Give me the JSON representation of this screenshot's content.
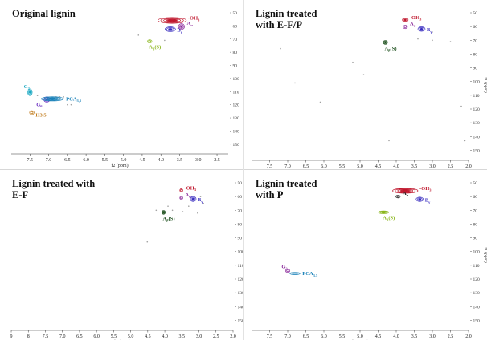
{
  "figure": {
    "panels": [
      {
        "title": "Original lignin",
        "show_xaxis": true,
        "show_yaxis": false,
        "xlabel": "f2 (ppm)",
        "ylabel": "",
        "ytick_labels": [
          "50",
          "60",
          "70",
          "80",
          "90",
          "100",
          "110",
          "120",
          "130",
          "140",
          "150"
        ],
        "xtick_labels": [
          "7.5",
          "7.0",
          "6.5",
          "6.0",
          "5.5",
          "5.0",
          "4.5",
          "4.0",
          "3.5",
          "3.0",
          "2.5"
        ],
        "crosspeaks": [
          {
            "label": "-OMe",
            "x": 3.7,
            "y": 55.8,
            "color": "#c0182e",
            "rx": 0.38,
            "ry": 2.2,
            "layers": 5
          },
          {
            "label": "Aα",
            "x": 3.45,
            "y": 60.5,
            "color": "#8a2a9a",
            "rx": 0.08,
            "ry": 2.2,
            "layers": 3
          },
          {
            "label": "Bγ",
            "x": 3.75,
            "y": 62.5,
            "color": "#3a2ec0",
            "rx": 0.14,
            "ry": 1.8,
            "layers": 3
          },
          {
            "label": "Aβ(S)",
            "x": 4.3,
            "y": 71.8,
            "color": "#8ab61c",
            "rx": 0.06,
            "ry": 1.2,
            "layers": 2
          },
          {
            "label": "G2",
            "x": 7.5,
            "y": 110.5,
            "color": "#19a8c2",
            "rx": 0.06,
            "ry": 2.5,
            "layers": 3
          },
          {
            "label": "G6",
            "x": 7.05,
            "y": 116.0,
            "color": "#6a2cc0",
            "rx": 0.08,
            "ry": 2.0,
            "layers": 3
          },
          {
            "label": "PCA3,5",
            "x": 6.9,
            "y": 115.5,
            "color": "#1780b8",
            "rx": 0.3,
            "ry": 1.6,
            "layers": 4
          },
          {
            "label": "H3,5",
            "x": 7.45,
            "y": 126.0,
            "color": "#c07a1a",
            "rx": 0.06,
            "ry": 1.5,
            "layers": 2
          }
        ],
        "noise_points": [
          [
            4.6,
            67
          ],
          [
            3.9,
            71
          ],
          [
            6.8,
            114
          ],
          [
            6.7,
            114
          ],
          [
            6.6,
            114
          ],
          [
            6.5,
            120
          ],
          [
            6.4,
            120
          ],
          [
            7.3,
            113
          ]
        ]
      },
      {
        "title": "Lignin treated\nwith E-F/P",
        "show_xaxis": true,
        "show_yaxis": true,
        "xlabel": "f2 (ppm)",
        "ylabel": "f1 (ppm)",
        "ytick_labels": [
          "50",
          "60",
          "70",
          "80",
          "90",
          "100",
          "110",
          "120",
          "130",
          "140",
          "150"
        ],
        "xtick_labels": [
          "7.5",
          "7.0",
          "6.5",
          "6.0",
          "5.5",
          "5.0",
          "4.5",
          "4.0",
          "3.5",
          "3.0",
          "2.5",
          "2.0"
        ],
        "crosspeaks": [
          {
            "label": "-OMe",
            "x": 3.75,
            "y": 55.2,
            "color": "#c0182e",
            "rx": 0.08,
            "ry": 1.4,
            "layers": 3
          },
          {
            "label": "Aα",
            "x": 3.75,
            "y": 60.3,
            "color": "#8a2a9a",
            "rx": 0.06,
            "ry": 1.2,
            "layers": 2
          },
          {
            "label": "Bγ",
            "x": 3.3,
            "y": 61.8,
            "color": "#3a2ec0",
            "rx": 0.1,
            "ry": 1.6,
            "layers": 3
          },
          {
            "label": "Aβ(S)",
            "x": 4.3,
            "y": 71.5,
            "color": "#1c4f1c",
            "rx": 0.06,
            "ry": 1.4,
            "layers": 3
          }
        ],
        "noise_points": [
          [
            7.2,
            76
          ],
          [
            6.8,
            101
          ],
          [
            6.1,
            115
          ],
          [
            5.2,
            86
          ],
          [
            4.9,
            95
          ],
          [
            4.2,
            143
          ],
          [
            3.4,
            69
          ],
          [
            3.0,
            70
          ],
          [
            2.5,
            71
          ],
          [
            2.2,
            118
          ],
          [
            2.1,
            143
          ],
          [
            3.0,
            64
          ]
        ]
      },
      {
        "title": "Lignin treated with\nE-F",
        "show_xaxis": true,
        "show_yaxis": false,
        "xlabel": "f2 (ppm)",
        "ylabel": "",
        "ytick_labels": [
          "50",
          "60",
          "70",
          "80",
          "90",
          "100",
          "110",
          "120",
          "130",
          "140",
          "150"
        ],
        "xtick_labels": [
          "9",
          "8",
          "7.5",
          "7.0",
          "6.5",
          "6.0",
          "5.5",
          "5.0",
          "4.5",
          "4.0",
          "3.5",
          "3.0",
          "2.5",
          "2.0"
        ],
        "crosspeaks": [
          {
            "label": "-OMe",
            "x": 3.75,
            "y": 55.5,
            "color": "#c0182e",
            "rx": 0.05,
            "ry": 1.2,
            "layers": 2
          },
          {
            "label": "Aα",
            "x": 3.75,
            "y": 61.0,
            "color": "#8a2a9a",
            "rx": 0.05,
            "ry": 1.2,
            "layers": 2
          },
          {
            "label": "Bγ",
            "x": 3.35,
            "y": 61.8,
            "color": "#3a2ec0",
            "rx": 0.1,
            "ry": 1.8,
            "layers": 3
          },
          {
            "label": "Aβ(S)",
            "x": 4.35,
            "y": 71.5,
            "color": "#1c4f1c",
            "rx": 0.06,
            "ry": 1.4,
            "layers": 3
          }
        ],
        "noise_points": [
          [
            4.9,
            93
          ],
          [
            4.3,
            76
          ],
          [
            4.05,
            70
          ],
          [
            3.7,
            71
          ],
          [
            3.2,
            72
          ],
          [
            3.1,
            60
          ],
          [
            4.6,
            70
          ],
          [
            3.5,
            67
          ],
          [
            3.0,
            65
          ],
          [
            4.2,
            67
          ]
        ]
      },
      {
        "title": "Lignin treated\nwith P",
        "show_xaxis": true,
        "show_yaxis": true,
        "xlabel": "f2 (ppm)",
        "ylabel": "f1 (ppm)",
        "ytick_labels": [
          "50",
          "60",
          "70",
          "80",
          "90",
          "100",
          "110",
          "120",
          "130",
          "140",
          "150"
        ],
        "xtick_labels": [
          "7.5",
          "7.0",
          "6.5",
          "6.0",
          "5.5",
          "5.0",
          "4.5",
          "4.0",
          "3.5",
          "3.0",
          "2.5",
          "2.0"
        ],
        "crosspeaks": [
          {
            "label": "-OMe",
            "x": 3.75,
            "y": 55.8,
            "color": "#c0182e",
            "rx": 0.35,
            "ry": 1.8,
            "layers": 5
          },
          {
            "label": "Aα",
            "x": 3.95,
            "y": 60.0,
            "color": "#1c1c1c",
            "rx": 0.06,
            "ry": 1.0,
            "layers": 2
          },
          {
            "label": "Bγ",
            "x": 3.35,
            "y": 62.0,
            "color": "#3a2ec0",
            "rx": 0.1,
            "ry": 1.6,
            "layers": 3
          },
          {
            "label": "Aβ(S)",
            "x": 4.35,
            "y": 71.5,
            "color": "#8ab61c",
            "rx": 0.14,
            "ry": 1.0,
            "layers": 3
          },
          {
            "label": "G2",
            "x": 7.0,
            "y": 114.0,
            "color": "#8a2a9a",
            "rx": 0.06,
            "ry": 1.2,
            "layers": 2
          },
          {
            "label": "PCA3,5",
            "x": 6.8,
            "y": 116.0,
            "color": "#1780b8",
            "rx": 0.14,
            "ry": 0.8,
            "layers": 2
          }
        ],
        "noise_points": []
      }
    ]
  }
}
